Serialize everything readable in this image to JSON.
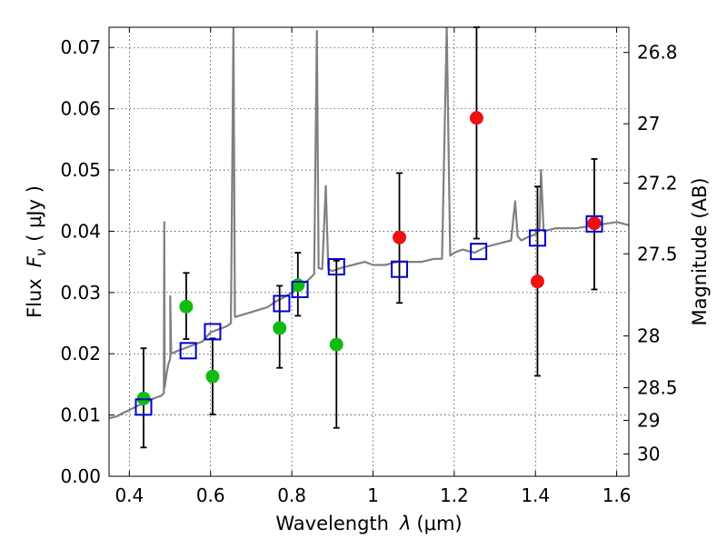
{
  "chart_data": {
    "type": "scatter",
    "xlabel": "Wavelength",
    "xlabel_symbol": "λ",
    "xlabel_unit": "(μm)",
    "ylabel": "Flux",
    "ylabel_symbol": "F",
    "ylabel_sub": "ν",
    "ylabel_unit": "( μJy )",
    "y2label": "Magnitude (AB)",
    "xlim": [
      0.35,
      1.63
    ],
    "ylim": [
      0.0,
      0.0733
    ],
    "grid": true,
    "x_ticks": [
      0.4,
      0.6,
      0.8,
      1.0,
      1.2,
      1.4,
      1.6
    ],
    "x_tick_labels": [
      "0.4",
      "0.6",
      "0.8",
      "1",
      "1.2",
      "1.4",
      "1.6"
    ],
    "y_ticks": [
      0.0,
      0.01,
      0.02,
      0.03,
      0.04,
      0.05,
      0.06,
      0.07
    ],
    "y_tick_labels": [
      "0.00",
      "0.01",
      "0.02",
      "0.03",
      "0.04",
      "0.05",
      "0.06",
      "0.07"
    ],
    "mag_ticks": [
      26.8,
      27,
      27.2,
      27.5,
      28,
      28.5,
      29,
      30
    ],
    "mag_tick_labels": [
      "26.8",
      "27",
      "27.2",
      "27.5",
      "28",
      "28.5",
      "29",
      "30"
    ],
    "series": [
      {
        "name": "model-spectrum",
        "kind": "line",
        "color": "#808080",
        "x": [
          0.35,
          0.37,
          0.38,
          0.4,
          0.42,
          0.44,
          0.46,
          0.48,
          0.485,
          0.4861,
          0.487,
          0.49,
          0.495,
          0.497,
          0.5,
          0.501,
          0.5007,
          0.503,
          0.52,
          0.54,
          0.56,
          0.58,
          0.6,
          0.62,
          0.64,
          0.65,
          0.6563,
          0.66,
          0.67,
          0.7,
          0.72,
          0.74,
          0.76,
          0.78,
          0.8,
          0.82,
          0.84,
          0.855,
          0.8617,
          0.866,
          0.875,
          0.8836,
          0.89,
          0.9,
          0.92,
          0.95,
          0.98,
          1.0,
          1.03,
          1.06,
          1.09,
          1.12,
          1.15,
          1.17,
          1.1815,
          1.19,
          1.2,
          1.22,
          1.25,
          1.28,
          1.31,
          1.34,
          1.35,
          1.356,
          1.365,
          1.38,
          1.4,
          1.41,
          1.4135,
          1.42,
          1.45,
          1.5,
          1.55,
          1.6,
          1.63
        ],
        "y": [
          0.0095,
          0.0098,
          0.0102,
          0.0108,
          0.0115,
          0.012,
          0.0127,
          0.0132,
          0.0136,
          0.0415,
          0.0145,
          0.016,
          0.018,
          0.0185,
          0.019,
          0.0195,
          0.0294,
          0.02,
          0.0205,
          0.021,
          0.0215,
          0.022,
          0.0235,
          0.024,
          0.0245,
          0.025,
          0.0733,
          0.026,
          0.0262,
          0.0268,
          0.0272,
          0.0276,
          0.0285,
          0.0292,
          0.03,
          0.031,
          0.032,
          0.033,
          0.0727,
          0.034,
          0.0338,
          0.0474,
          0.0338,
          0.0335,
          0.034,
          0.0345,
          0.035,
          0.0345,
          0.0345,
          0.035,
          0.035,
          0.035,
          0.0355,
          0.0355,
          0.0733,
          0.036,
          0.0365,
          0.037,
          0.0365,
          0.0375,
          0.038,
          0.0385,
          0.0449,
          0.0392,
          0.0385,
          0.039,
          0.0395,
          0.0402,
          0.05,
          0.04,
          0.0405,
          0.0405,
          0.041,
          0.0415,
          0.041
        ]
      },
      {
        "name": "green-measurements",
        "kind": "circle",
        "color": "#11bb11",
        "x": [
          0.435,
          0.54,
          0.605,
          0.77,
          0.815,
          0.91
        ],
        "y": [
          0.0127,
          0.0277,
          0.0163,
          0.0242,
          0.0312,
          0.0215
        ]
      },
      {
        "name": "red-measurements",
        "kind": "circle",
        "color": "#ee1111",
        "x": [
          1.065,
          1.255,
          1.405,
          1.545
        ],
        "y": [
          0.039,
          0.0585,
          0.0318,
          0.0413
        ]
      },
      {
        "name": "model-band-flux",
        "kind": "square",
        "color": "#0000cc",
        "x": [
          0.435,
          0.545,
          0.605,
          0.775,
          0.82,
          0.91,
          1.065,
          1.26,
          1.405,
          1.545
        ],
        "y": [
          0.0113,
          0.0205,
          0.0236,
          0.0282,
          0.0305,
          0.0342,
          0.0338,
          0.0367,
          0.0389,
          0.0412
        ]
      }
    ],
    "error_bars": [
      {
        "x": 0.435,
        "low": 0.0047,
        "high": 0.0209
      },
      {
        "x": 0.54,
        "low": 0.0224,
        "high": 0.0332
      },
      {
        "x": 0.605,
        "low": 0.0101,
        "high": 0.0225
      },
      {
        "x": 0.77,
        "low": 0.0177,
        "high": 0.0311
      },
      {
        "x": 0.815,
        "low": 0.0262,
        "high": 0.0365
      },
      {
        "x": 0.91,
        "low": 0.0079,
        "high": 0.0352
      },
      {
        "x": 1.065,
        "low": 0.0283,
        "high": 0.0495
      },
      {
        "x": 1.255,
        "low": 0.0388,
        "high": 0.0733
      },
      {
        "x": 1.405,
        "low": 0.0164,
        "high": 0.0473
      },
      {
        "x": 1.545,
        "low": 0.0305,
        "high": 0.0518
      }
    ]
  }
}
